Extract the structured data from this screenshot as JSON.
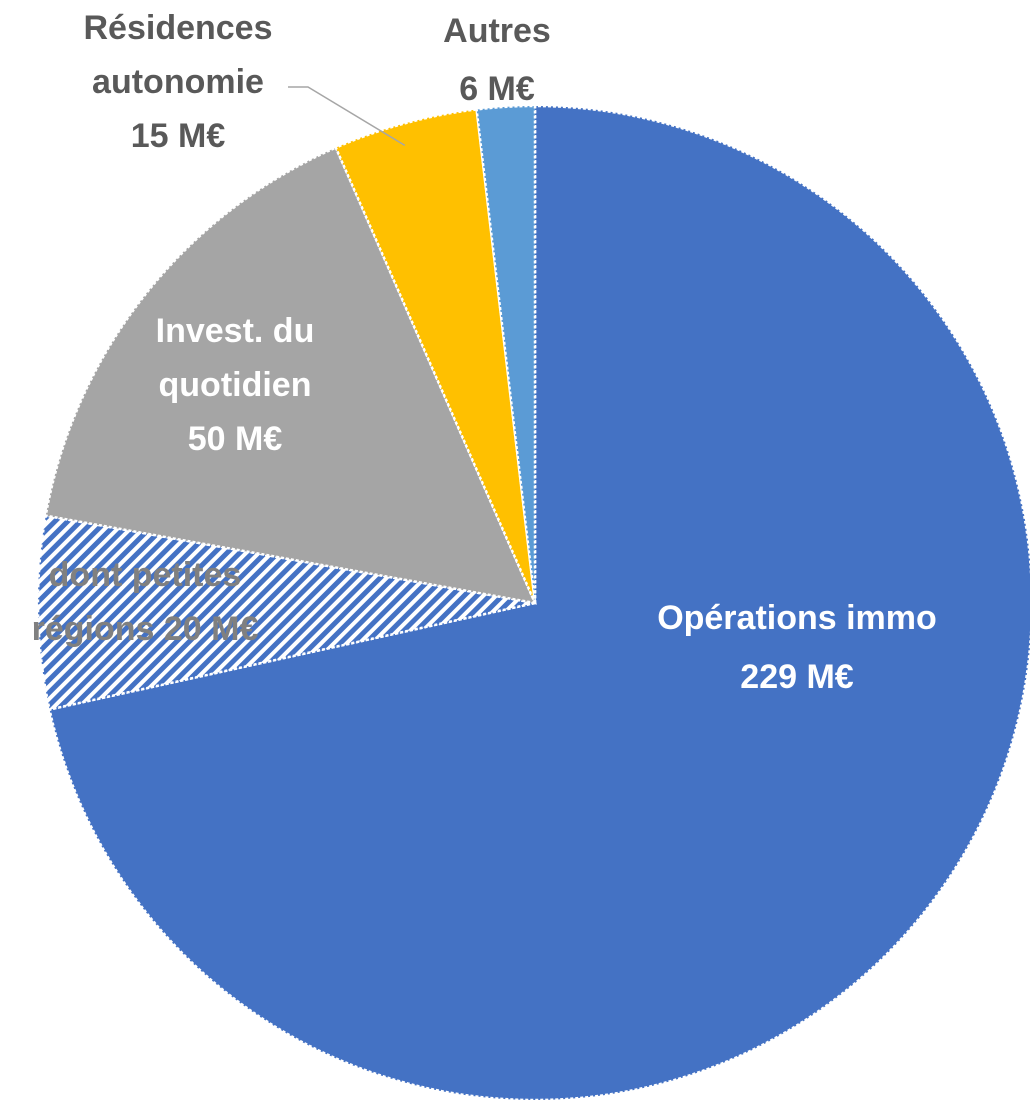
{
  "chart_data": {
    "type": "pie",
    "start_angle_deg": 0,
    "direction": "clockwise",
    "slices": [
      {
        "key": "operations-immo",
        "label_lines": [
          "Opérations immo",
          "229 M€"
        ],
        "value": 229,
        "color": "#4472C4",
        "pattern": "solid",
        "label_color": "#FFFFFF",
        "label_position": "inside"
      },
      {
        "key": "petites-regions",
        "label_lines": [
          "dont petites",
          "régions 20 M€"
        ],
        "value": 20,
        "color": "#4472C4",
        "pattern": "diagonal-hatch",
        "label_color": "#808080",
        "label_position": "inside"
      },
      {
        "key": "invest-quotidien",
        "label_lines": [
          "Invest. du",
          "quotidien",
          "50 M€"
        ],
        "value": 50,
        "color": "#A5A5A5",
        "pattern": "solid",
        "label_color": "#FFFFFF",
        "label_position": "inside"
      },
      {
        "key": "residences-autonomie",
        "label_lines": [
          "Résidences",
          "autonomie",
          "15 M€"
        ],
        "value": 15,
        "color": "#FFC000",
        "pattern": "solid",
        "label_color": "#595959",
        "label_position": "outside-with-leader"
      },
      {
        "key": "autres",
        "label_lines": [
          "Autres",
          "6 M€"
        ],
        "value": 6,
        "color": "#5B9BD5",
        "pattern": "solid",
        "label_color": "#595959",
        "label_position": "outside"
      }
    ]
  }
}
